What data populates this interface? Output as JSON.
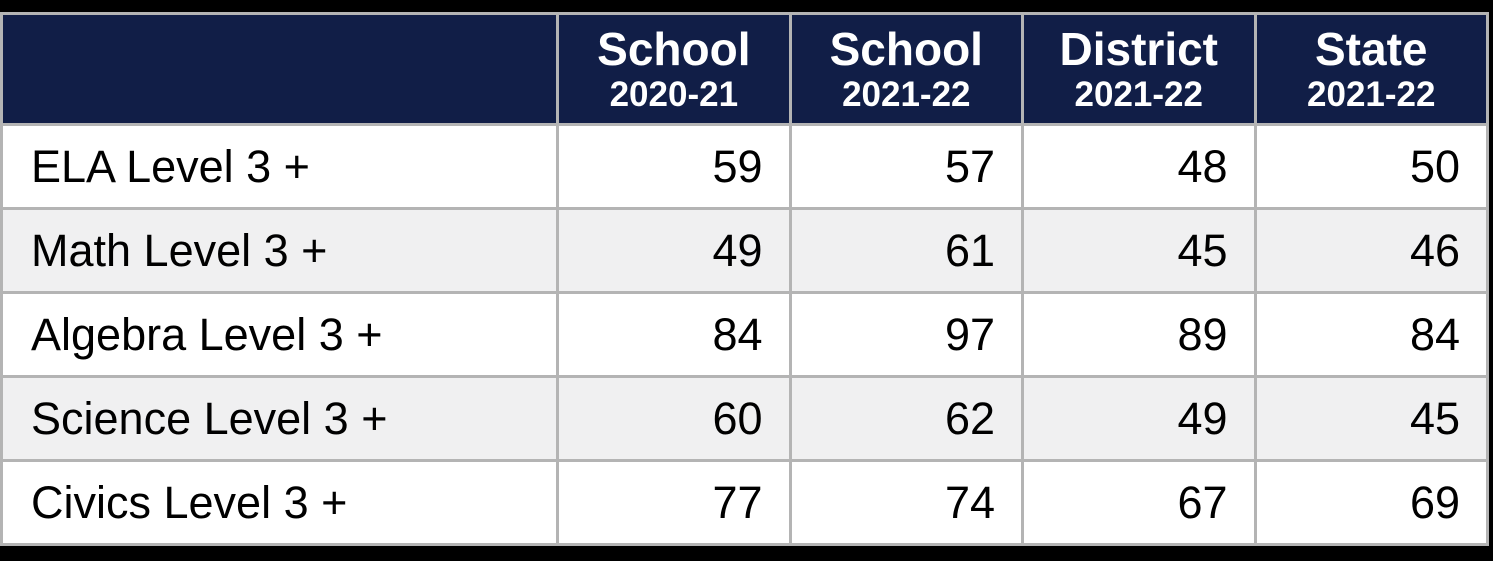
{
  "colors": {
    "frame_bg": "#000000",
    "header_bg": "#111E47",
    "header_text": "#FFFFFF",
    "grid_border": "#B4B4B4",
    "row_bg": "#FFFFFF",
    "row_alt_bg": "#F0F0F1",
    "body_text": "#000000"
  },
  "table": {
    "corner_label": "",
    "columns": [
      {
        "label": "School",
        "sublabel": "2020-21"
      },
      {
        "label": "School",
        "sublabel": "2021-22"
      },
      {
        "label": "District",
        "sublabel": "2021-22"
      },
      {
        "label": "State",
        "sublabel": "2021-22"
      }
    ],
    "rows": [
      {
        "label": "ELA Level 3 +",
        "values": [
          "59",
          "57",
          "48",
          "50"
        ]
      },
      {
        "label": "Math Level 3 +",
        "values": [
          "49",
          "61",
          "45",
          "46"
        ]
      },
      {
        "label": "Algebra Level 3 +",
        "values": [
          "84",
          "97",
          "89",
          "84"
        ]
      },
      {
        "label": "Science Level 3 +",
        "values": [
          "60",
          "62",
          "49",
          "45"
        ]
      },
      {
        "label": "Civics Level 3 +",
        "values": [
          "77",
          "74",
          "67",
          "69"
        ]
      }
    ]
  },
  "chart_data": {
    "type": "table",
    "title": "",
    "categories": [
      "ELA Level 3 +",
      "Math Level 3 +",
      "Algebra Level 3 +",
      "Science Level 3 +",
      "Civics Level 3 +"
    ],
    "series": [
      {
        "name": "School 2020-21",
        "values": [
          59,
          49,
          84,
          60,
          77
        ]
      },
      {
        "name": "School 2021-22",
        "values": [
          57,
          61,
          97,
          62,
          74
        ]
      },
      {
        "name": "District 2021-22",
        "values": [
          48,
          45,
          89,
          49,
          67
        ]
      },
      {
        "name": "State 2021-22",
        "values": [
          50,
          46,
          84,
          45,
          69
        ]
      }
    ]
  }
}
